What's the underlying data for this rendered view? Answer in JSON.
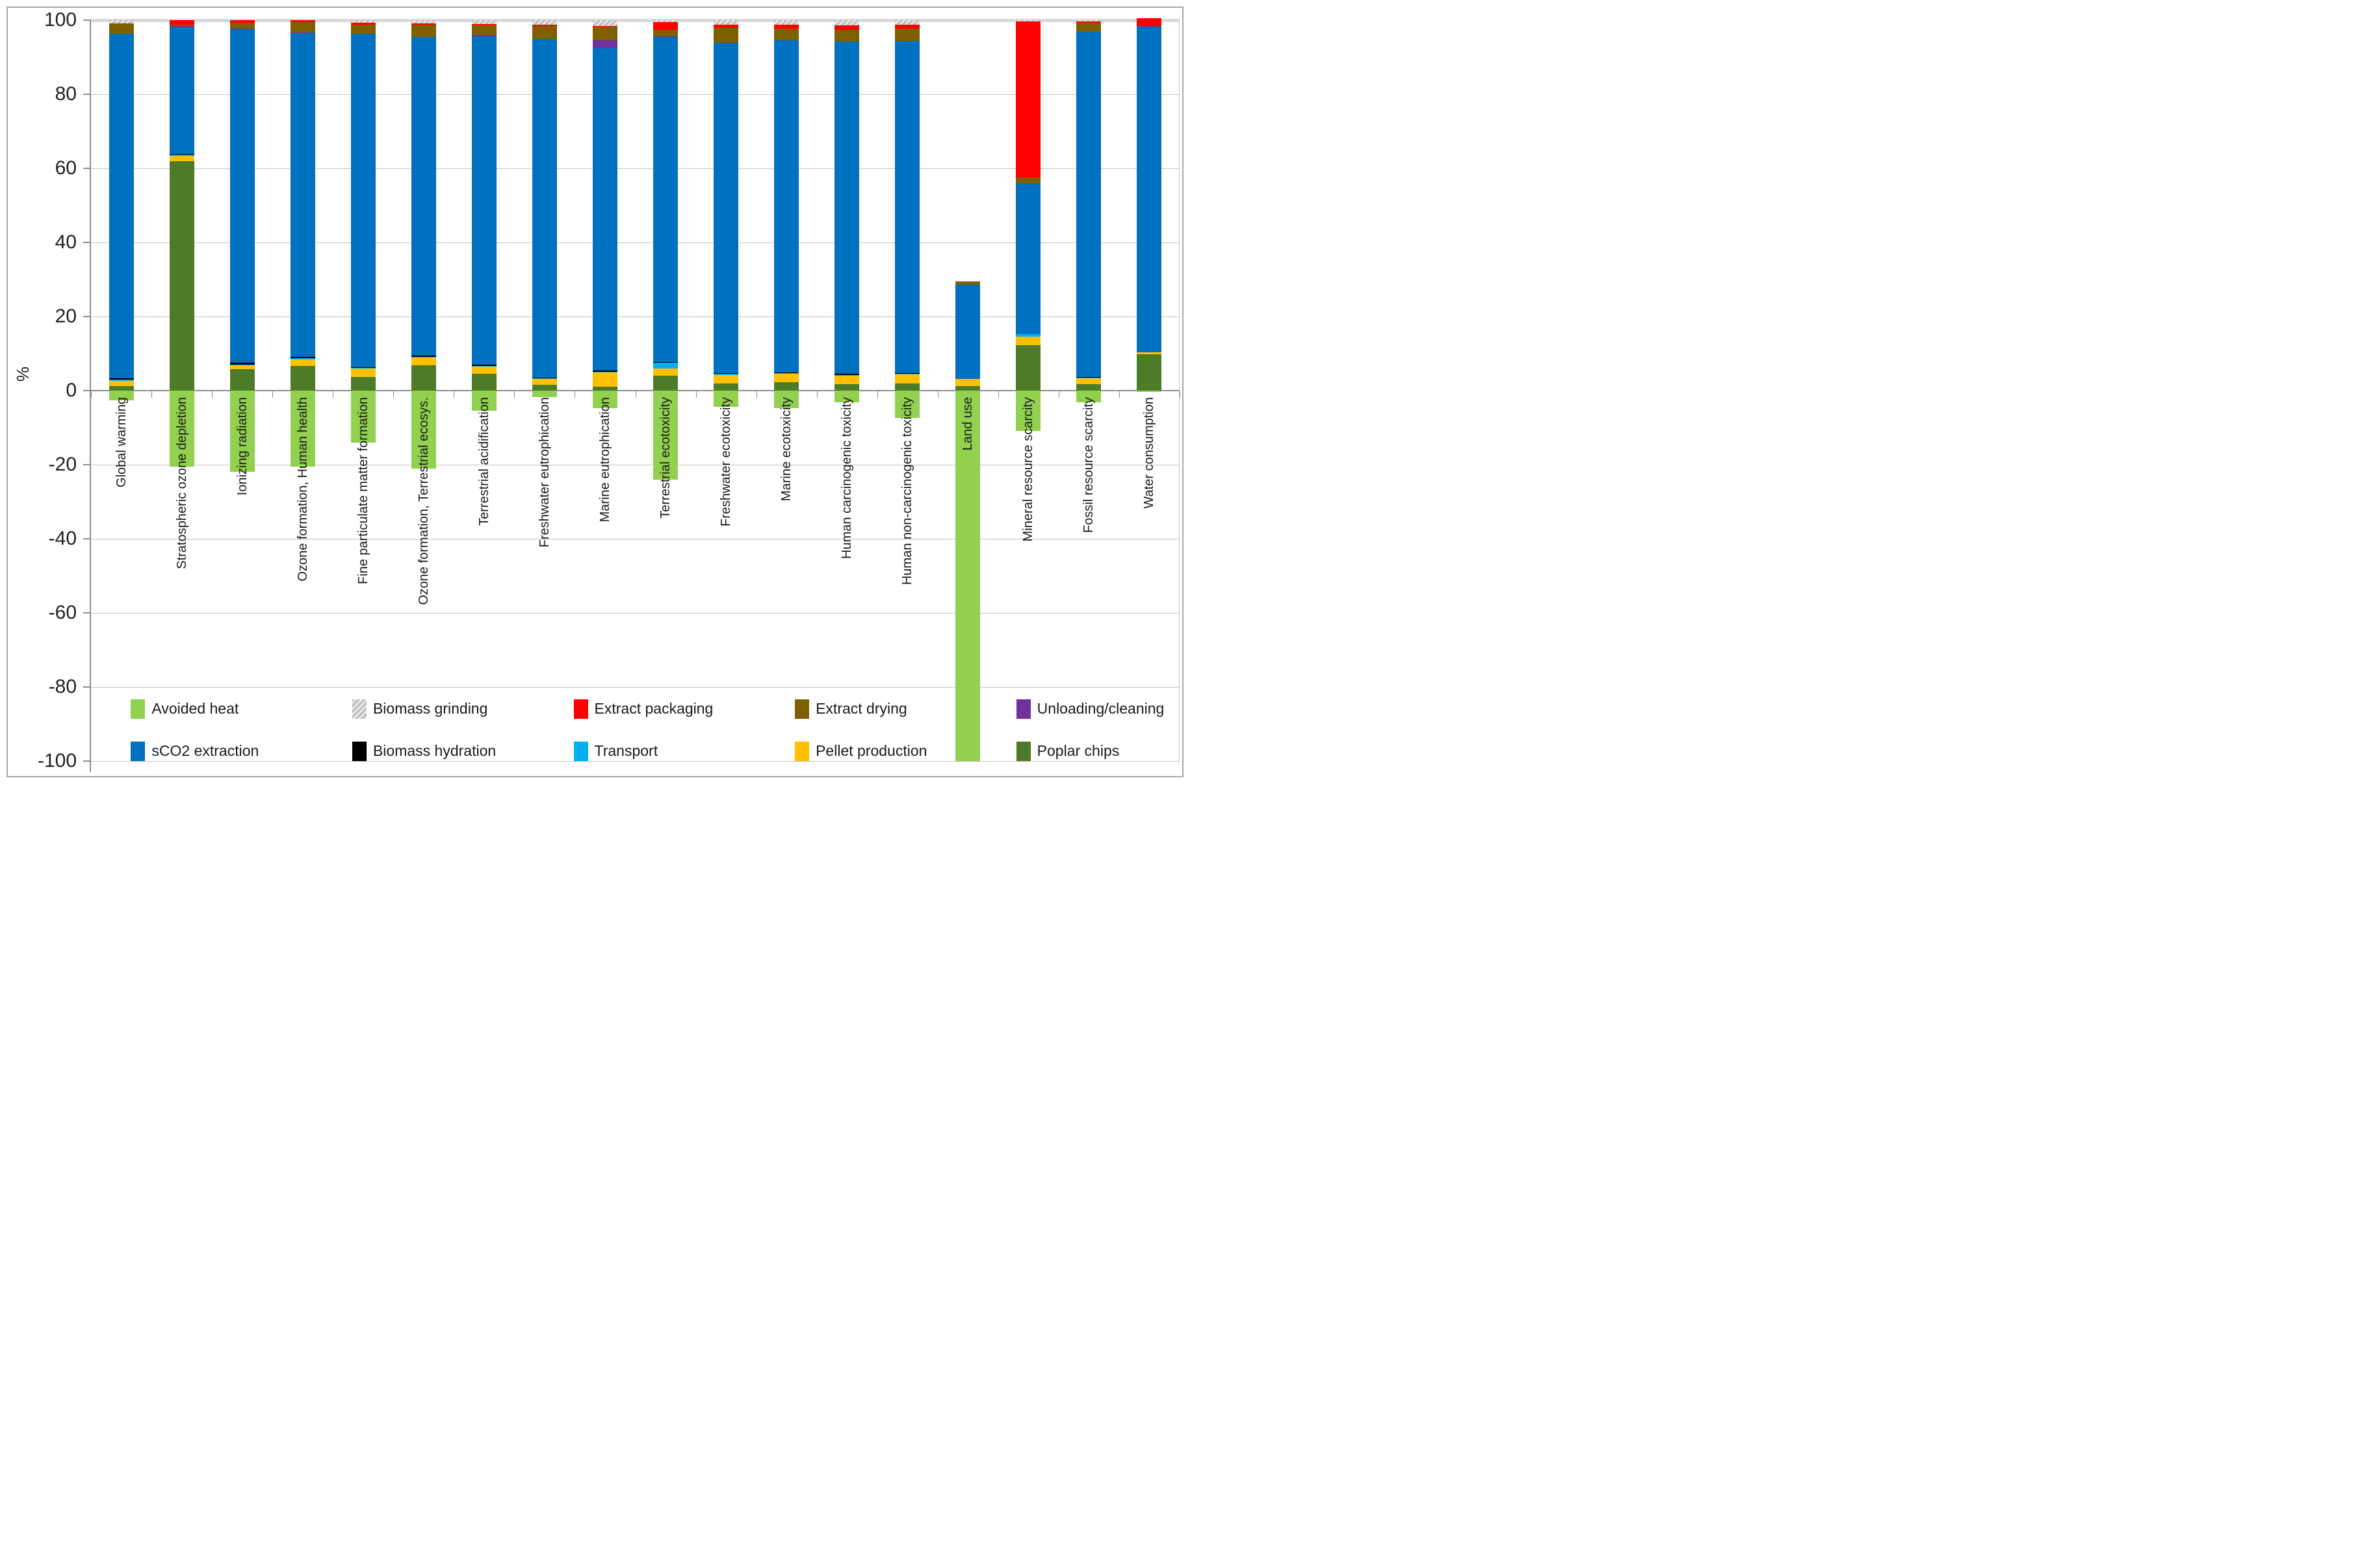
{
  "figure": {
    "border_color": "#a6a6a6",
    "background": "#ffffff"
  },
  "chart_data": {
    "type": "bar",
    "stacked": true,
    "title": "",
    "xlabel": "",
    "ylabel": "%",
    "ylim": [
      -100,
      100
    ],
    "yticks": [
      100,
      80,
      60,
      40,
      20,
      0,
      -20,
      -40,
      -60,
      -80,
      -100
    ],
    "grid": true,
    "legend_position": "bottom-inside",
    "categories": [
      "Global warming",
      "Stratospheric ozone depletion",
      "Ionizing radiation",
      "Ozone formation, Human health",
      "Fine particulate matter formation",
      "Ozone formation, Terrestrial ecosys.",
      "Terrestrial acidification",
      "Freshwater eutrophication",
      "Marine eutrophication",
      "Terrestrial ecotoxicity",
      "Freshwater ecotoxicity",
      "Marine ecotoxicity",
      "Human carcinogenic toxicity",
      "Human non-carcinogenic toxicity",
      "Land use",
      "Mineral resource scarcity",
      "Fossil resource scarcity",
      "Water consumption"
    ],
    "series": [
      {
        "key": "avoided_heat",
        "label": "Avoided heat",
        "color": "#92D050",
        "hatch": false,
        "values": [
          -2.6,
          -20.5,
          -22,
          -20.5,
          -14,
          -21,
          -5.5,
          -1.7,
          -4.7,
          -24,
          -4.3,
          -4.8,
          -3.2,
          -7.3,
          -100,
          -10.8,
          -3.2,
          -0.3
        ]
      },
      {
        "key": "poplar_chips",
        "label": "Poplar chips",
        "color": "#4E7B28",
        "hatch": false,
        "values": [
          1.2,
          62,
          5.8,
          6.7,
          3.7,
          6.8,
          4.5,
          1.5,
          1.0,
          4.0,
          2.0,
          2.2,
          1.8,
          2.0,
          1.3,
          12.3,
          1.8,
          9.9
        ]
      },
      {
        "key": "pellet_production",
        "label": "Pellet production",
        "color": "#FFC000",
        "hatch": false,
        "values": [
          1.4,
          1.3,
          1.2,
          1.8,
          2.2,
          2.2,
          2.0,
          1.7,
          4.0,
          2.0,
          2.3,
          2.3,
          2.2,
          2.4,
          1.9,
          2.2,
          1.5,
          0.5
        ]
      },
      {
        "key": "transport",
        "label": "Transport",
        "color": "#00B0F0",
        "hatch": false,
        "values": [
          0.3,
          0.4,
          0.1,
          0.3,
          0.3,
          0.2,
          0.2,
          0.1,
          0.1,
          1.5,
          0.2,
          0.2,
          0.2,
          0.2,
          0,
          0.7,
          0.2,
          0
        ]
      },
      {
        "key": "biomass_hydration",
        "label": "Biomass hydration",
        "color": "#000000",
        "hatch": false,
        "values": [
          0.4,
          0.1,
          0.5,
          0.3,
          0.2,
          0.2,
          0.3,
          0.2,
          0.3,
          0.2,
          0.3,
          0.3,
          0.3,
          0.2,
          0,
          0,
          0.2,
          0
        ]
      },
      {
        "key": "sco2_extraction",
        "label": "sCO2 extraction",
        "color": "#0070C0",
        "hatch": false,
        "values": [
          93.0,
          34.2,
          89.9,
          87.4,
          90.0,
          86.0,
          88.6,
          91.4,
          87.0,
          87.8,
          89.1,
          89.5,
          89.8,
          89.6,
          25.4,
          40.8,
          93.1,
          87.9
        ]
      },
      {
        "key": "unloading_cleaning",
        "label": "Unloading/cleaning",
        "color": "#7030A0",
        "hatch": false,
        "values": [
          0,
          0.5,
          0.3,
          0.2,
          0,
          0,
          0.3,
          0,
          2.2,
          0.2,
          0,
          0,
          0,
          0,
          0,
          0,
          0,
          0.2
        ]
      },
      {
        "key": "extract_drying",
        "label": "Extract drying",
        "color": "#7F6000",
        "hatch": false,
        "values": [
          2.8,
          0.3,
          1.5,
          2.7,
          2.4,
          3.3,
          2.7,
          3.6,
          3.6,
          1.7,
          4.0,
          3.3,
          3.1,
          3.3,
          0.9,
          1.6,
          2.5,
          0
        ]
      },
      {
        "key": "extract_packaging",
        "label": "Extract packaging",
        "color": "#FF0000",
        "hatch": false,
        "values": [
          0,
          1.2,
          0.7,
          0.6,
          0.5,
          0.5,
          0.3,
          0.3,
          0.2,
          2.0,
          0.8,
          0.9,
          1.2,
          1.1,
          0,
          42.1,
          0.3,
          2.0
        ]
      },
      {
        "key": "biomass_grinding",
        "label": "Biomass grinding",
        "color": "#BFBFBF",
        "hatch": true,
        "values": [
          0.9,
          0,
          0,
          0,
          0.7,
          0.8,
          1.1,
          1.2,
          1.6,
          0.6,
          1.3,
          1.3,
          1.4,
          1.2,
          0,
          0.3,
          0.4,
          0
        ]
      }
    ],
    "legend_rows": [
      [
        "avoided_heat",
        "biomass_grinding",
        "extract_packaging",
        "extract_drying",
        "unloading_cleaning"
      ],
      [
        "sco2_extraction",
        "biomass_hydration",
        "transport",
        "pellet_production",
        "poplar_chips"
      ]
    ],
    "legend_column_lefts_pct": [
      11.0,
      29.6,
      48.2,
      66.8,
      85.4
    ],
    "legend_row_tops_pct": [
      89.2,
      94.6
    ]
  }
}
